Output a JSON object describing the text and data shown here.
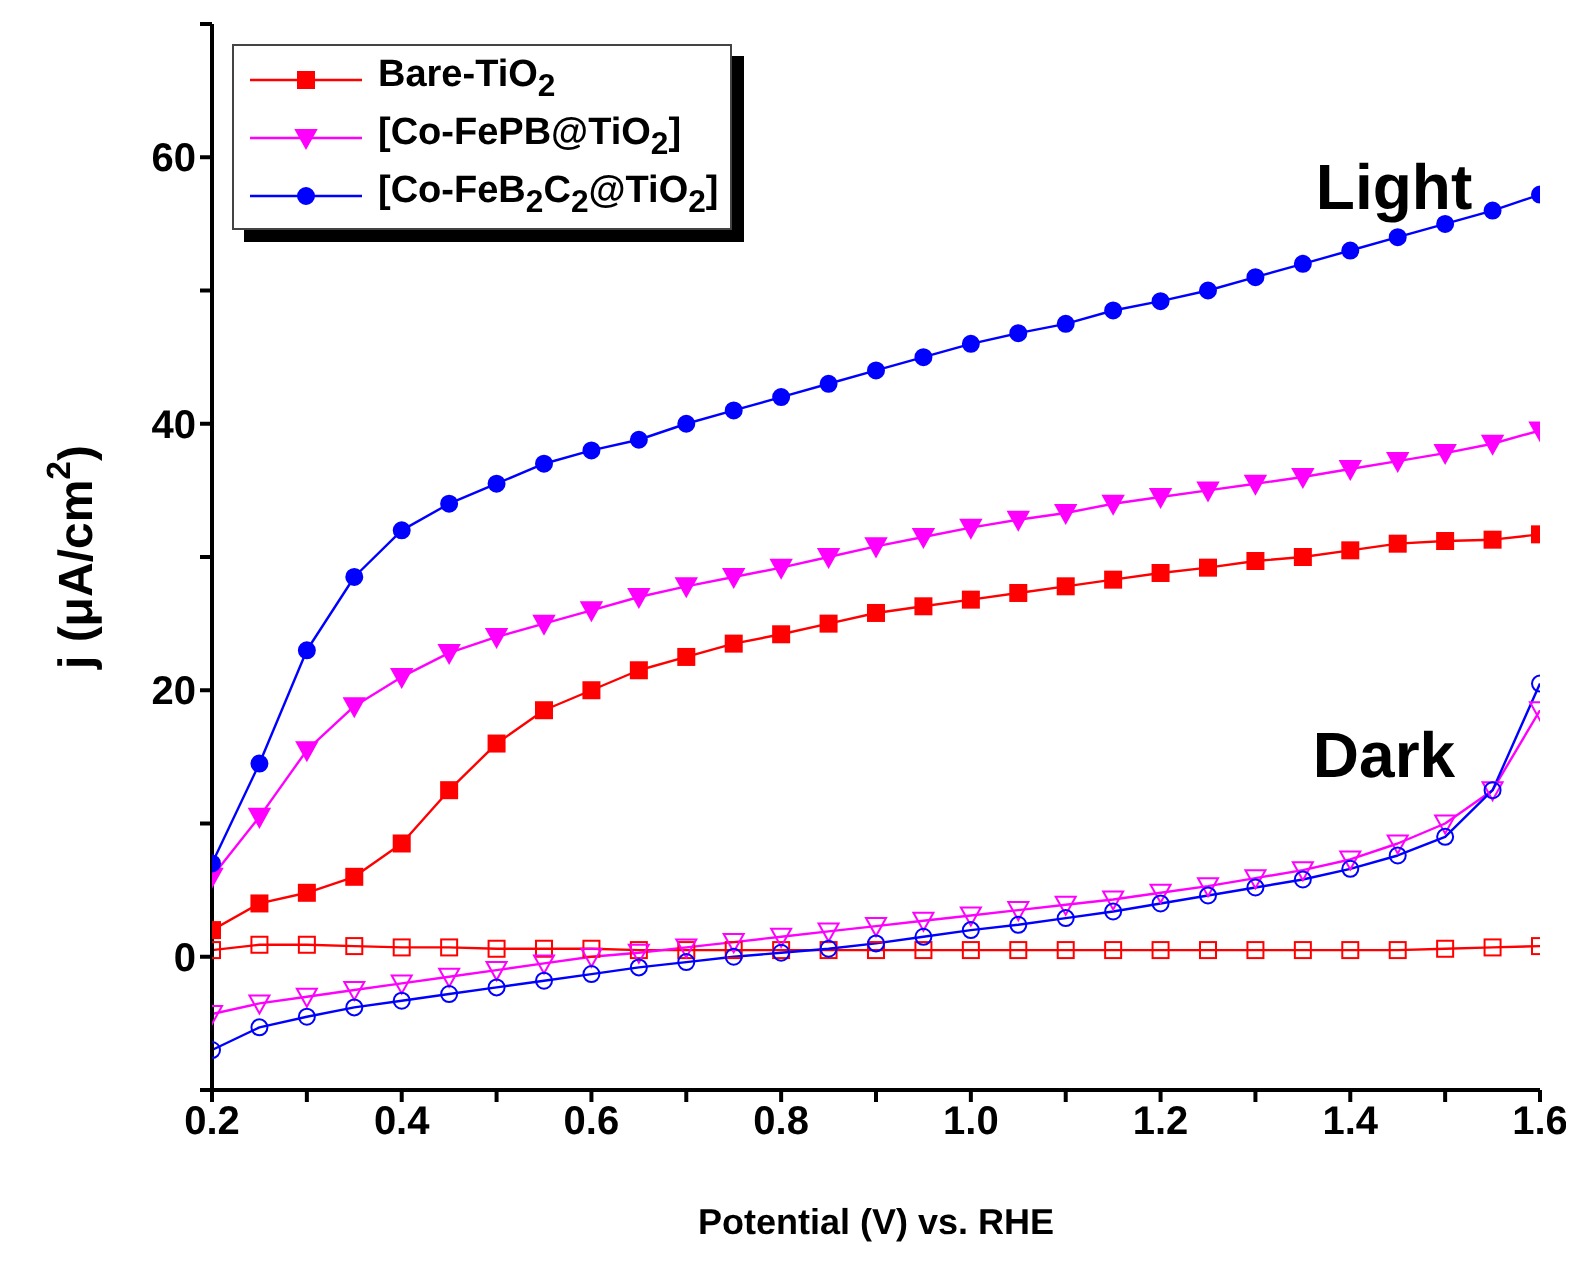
{
  "chart_data": {
    "type": "line",
    "xlabel": "Potential (V) vs. RHE",
    "ylabel": "j (μA/cm$^{2}$)",
    "x": [
      0.2,
      0.25,
      0.3,
      0.35,
      0.4,
      0.45,
      0.5,
      0.55,
      0.6,
      0.65,
      0.7,
      0.75,
      0.8,
      0.85,
      0.9,
      0.95,
      1.0,
      1.05,
      1.1,
      1.15,
      1.2,
      1.25,
      1.3,
      1.35,
      1.4,
      1.45,
      1.5,
      1.55,
      1.6
    ],
    "series": [
      {
        "name": "Bare-TiO$_{2}$",
        "color": "#ff0000",
        "marker": "square",
        "values": [
          2,
          4,
          4.8,
          6,
          8.5,
          12.5,
          16,
          18.5,
          20,
          21.5,
          22.5,
          23.5,
          24.2,
          25,
          25.8,
          26.3,
          26.8,
          27.3,
          27.8,
          28.3,
          28.8,
          29.2,
          29.7,
          30,
          30.5,
          31,
          31.2,
          31.3,
          31.7
        ]
      },
      {
        "name": "[Co-FePB@TiO$_{2}$]",
        "color": "#ff00ff",
        "marker": "triangle",
        "values": [
          6,
          10.5,
          15.5,
          18.8,
          21,
          22.8,
          24,
          25,
          26,
          27,
          27.8,
          28.5,
          29.2,
          30,
          30.8,
          31.5,
          32.2,
          32.8,
          33.3,
          34,
          34.5,
          35,
          35.5,
          36,
          36.6,
          37.2,
          37.8,
          38.5,
          39.5
        ]
      },
      {
        "name": "[Co-FeB$_{2}$C$_{2}$@TiO$_{2}$]",
        "color": "#0000ff",
        "marker": "circle",
        "values": [
          7,
          14.5,
          23,
          28.5,
          32,
          34,
          35.5,
          37,
          38,
          38.8,
          40,
          41,
          42,
          43,
          44,
          45,
          46,
          46.8,
          47.5,
          48.5,
          49.2,
          50,
          51,
          52,
          53,
          54,
          55,
          56,
          57.2
        ]
      },
      {
        "color": "#ff0000",
        "marker": "square",
        "values": [
          0.5,
          0.9,
          0.9,
          0.8,
          0.7,
          0.7,
          0.6,
          0.6,
          0.6,
          0.5,
          0.5,
          0.5,
          0.5,
          0.5,
          0.5,
          0.5,
          0.5,
          0.5,
          0.5,
          0.5,
          0.5,
          0.5,
          0.5,
          0.5,
          0.5,
          0.5,
          0.6,
          0.7,
          0.8
        ]
      },
      {
        "color": "#ff00ff",
        "marker": "triangle",
        "values": [
          -4.3,
          -3.5,
          -3,
          -2.5,
          -2,
          -1.5,
          -1,
          -0.5,
          0,
          0.3,
          0.7,
          1.1,
          1.5,
          1.9,
          2.3,
          2.7,
          3.1,
          3.5,
          3.9,
          4.3,
          4.8,
          5.3,
          5.9,
          6.5,
          7.3,
          8.5,
          10,
          12.5,
          18.5
        ]
      },
      {
        "color": "#0000ff",
        "marker": "circle",
        "values": [
          -7,
          -5.3,
          -4.5,
          -3.8,
          -3.3,
          -2.8,
          -2.3,
          -1.8,
          -1.3,
          -0.8,
          -0.4,
          0,
          0.3,
          0.6,
          1,
          1.5,
          2,
          2.4,
          2.9,
          3.4,
          4,
          4.6,
          5.2,
          5.8,
          6.6,
          7.6,
          9,
          12.5,
          20.5
        ]
      }
    ],
    "xlim": [
      0.2,
      1.6
    ],
    "xticks": [
      {
        "value": 0.2,
        "label": "0.2"
      },
      {
        "value": 0.3,
        "label": null
      },
      {
        "value": 0.4,
        "label": "0.4"
      },
      {
        "value": 0.5,
        "label": null
      },
      {
        "value": 0.6,
        "label": "0.6"
      },
      {
        "value": 0.7,
        "label": null
      },
      {
        "value": 0.8,
        "label": "0.8"
      },
      {
        "value": 0.9,
        "label": null
      },
      {
        "value": 1.0,
        "label": "1.0"
      },
      {
        "value": 1.1,
        "label": null
      },
      {
        "value": 1.2,
        "label": "1.2"
      },
      {
        "value": 1.3,
        "label": null
      },
      {
        "value": 1.4,
        "label": "1.4"
      },
      {
        "value": 1.5,
        "label": null
      },
      {
        "value": 1.6,
        "label": "1.6"
      }
    ],
    "ylim": [
      -10,
      70
    ],
    "yticks": [
      {
        "value": -10,
        "label": null
      },
      0,
      {
        "value": 10,
        "label": null
      },
      20,
      {
        "value": 30,
        "label": null
      },
      40,
      {
        "value": 50,
        "label": null
      },
      60,
      {
        "value": 70,
        "label": null
      }
    ],
    "annotations": [
      "Light",
      "Dark"
    ],
    "legend": "top left",
    "grid": false,
    "line_style": "solid"
  }
}
